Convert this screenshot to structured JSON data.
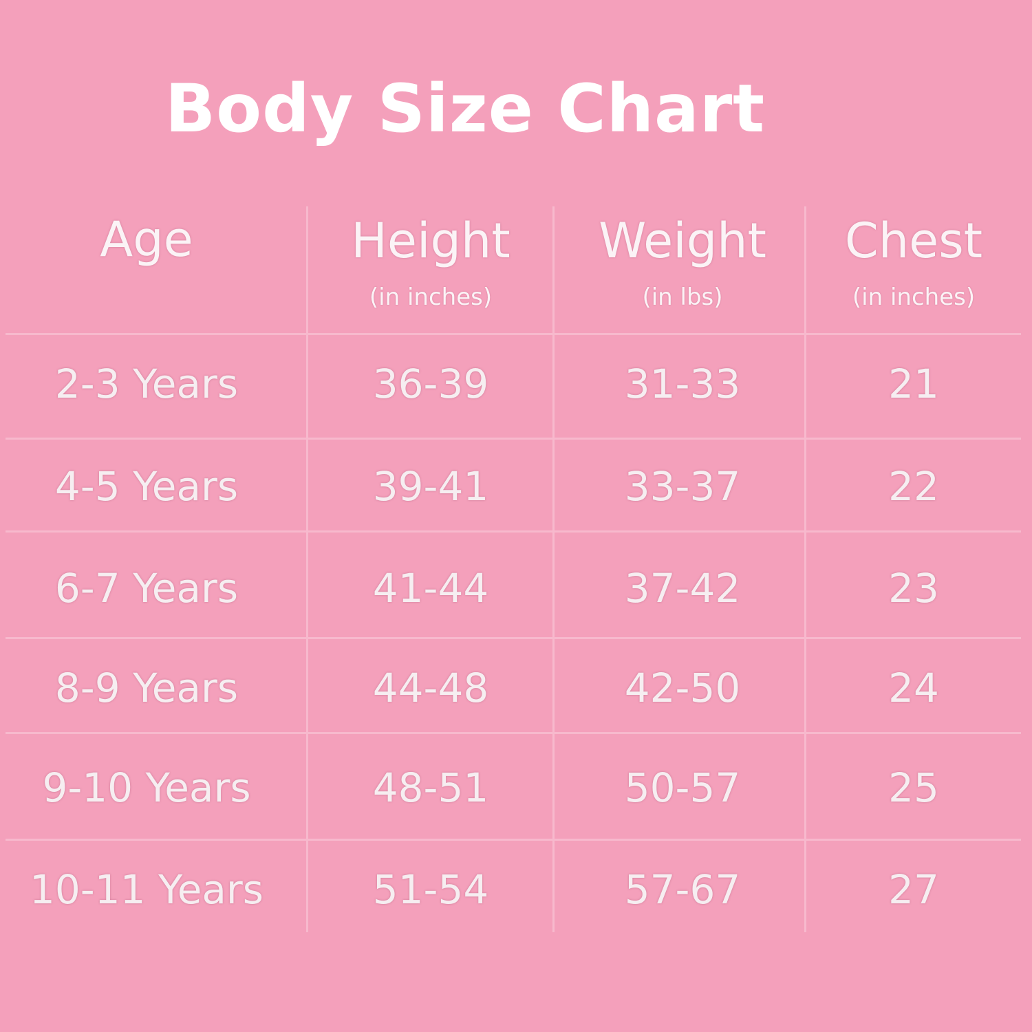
{
  "title": "Body Size Chart",
  "table": {
    "headers": [
      {
        "label": "Age"
      },
      {
        "label": "Height",
        "unit": "(in inches)"
      },
      {
        "label": "Weight",
        "unit": "(in lbs)"
      },
      {
        "label": "Chest",
        "unit": "(in inches)"
      }
    ],
    "rows": [
      [
        "2-3 Years",
        "36-39",
        "31-33",
        "21"
      ],
      [
        "4-5 Years",
        "39-41",
        "33-37",
        "22"
      ],
      [
        "6-7 Years",
        "41-44",
        "37-42",
        "23"
      ],
      [
        "8-9 Years",
        "44-48",
        "42-50",
        "24"
      ],
      [
        "9-10 Years",
        "48-51",
        "50-57",
        "25"
      ],
      [
        "10-11 Years",
        "51-54",
        "57-67",
        "27"
      ]
    ]
  }
}
